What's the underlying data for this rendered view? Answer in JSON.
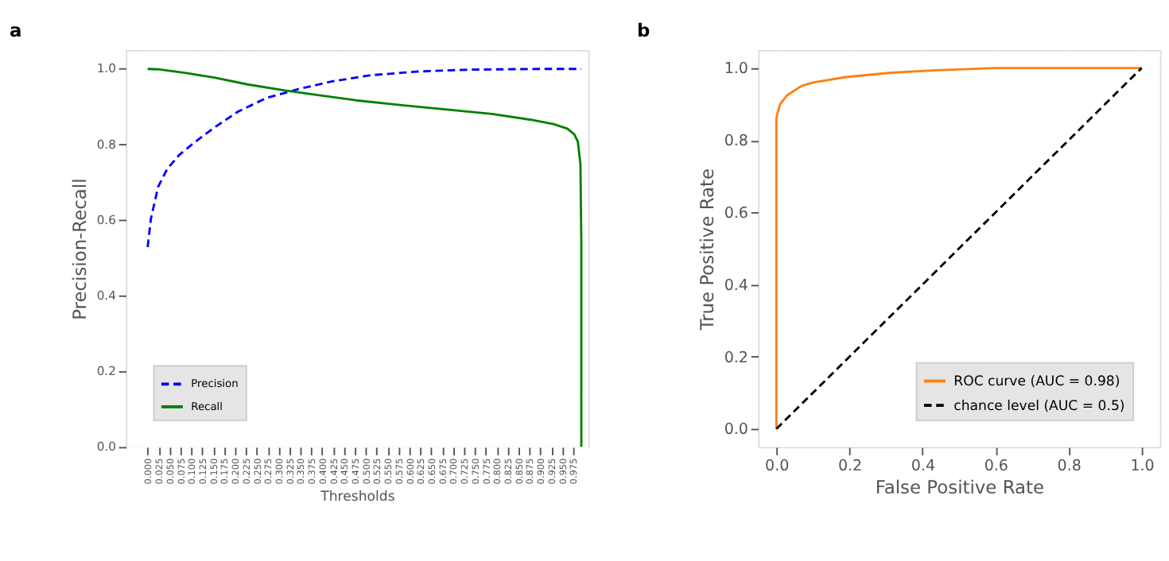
{
  "chart_data": [
    {
      "type": "line",
      "title": "a",
      "xlabel": "Thresholds",
      "ylabel": "Precision-Recall",
      "xlim": [
        -0.05,
        1.01
      ],
      "ylim": [
        0,
        1.05
      ],
      "xticks": [
        {
          "value": 0,
          "label": "0.000"
        },
        {
          "value": 0.025,
          "label": "0.025"
        },
        {
          "value": 0.05,
          "label": "0.050"
        },
        {
          "value": 0.075,
          "label": "0.075"
        },
        {
          "value": 0.1,
          "label": "0.100"
        },
        {
          "value": 0.125,
          "label": "0.125"
        },
        {
          "value": 0.15,
          "label": "0.150"
        },
        {
          "value": 0.175,
          "label": "0.175"
        },
        {
          "value": 0.2,
          "label": "0.200"
        },
        {
          "value": 0.225,
          "label": "0.225"
        },
        {
          "value": 0.25,
          "label": "0.250"
        },
        {
          "value": 0.275,
          "label": "0.275"
        },
        {
          "value": 0.3,
          "label": "0.300"
        },
        {
          "value": 0.325,
          "label": "0.325"
        },
        {
          "value": 0.35,
          "label": "0.350"
        },
        {
          "value": 0.375,
          "label": "0.375"
        },
        {
          "value": 0.4,
          "label": "0.400"
        },
        {
          "value": 0.425,
          "label": "0.425"
        },
        {
          "value": 0.45,
          "label": "0.450"
        },
        {
          "value": 0.475,
          "label": "0.475"
        },
        {
          "value": 0.5,
          "label": "0.500"
        },
        {
          "value": 0.525,
          "label": "0.525"
        },
        {
          "value": 0.55,
          "label": "0.550"
        },
        {
          "value": 0.575,
          "label": "0.575"
        },
        {
          "value": 0.6,
          "label": "0.600"
        },
        {
          "value": 0.625,
          "label": "0.625"
        },
        {
          "value": 0.65,
          "label": "0.650"
        },
        {
          "value": 0.675,
          "label": "0.675"
        },
        {
          "value": 0.7,
          "label": "0.700"
        },
        {
          "value": 0.725,
          "label": "0.725"
        },
        {
          "value": 0.75,
          "label": "0.750"
        },
        {
          "value": 0.775,
          "label": "0.775"
        },
        {
          "value": 0.8,
          "label": "0.800"
        },
        {
          "value": 0.825,
          "label": "0.825"
        },
        {
          "value": 0.85,
          "label": "0.850"
        },
        {
          "value": 0.875,
          "label": "0.875"
        },
        {
          "value": 0.9,
          "label": "0.900"
        },
        {
          "value": 0.925,
          "label": "0.925"
        },
        {
          "value": 0.95,
          "label": "0.950"
        },
        {
          "value": 0.975,
          "label": "0.975"
        }
      ],
      "yticks": [
        {
          "value": 0,
          "label": "0.0"
        },
        {
          "value": 0.2,
          "label": "0.2"
        },
        {
          "value": 0.4,
          "label": "0.4"
        },
        {
          "value": 0.6,
          "label": "0.6"
        },
        {
          "value": 0.8,
          "label": "0.8"
        },
        {
          "value": 1,
          "label": "1.0"
        }
      ],
      "grid": true,
      "legend": "bottom left",
      "series": [
        {
          "name": "Precision",
          "color": "#0000ff",
          "line_style": "dashed",
          "x": [
            0,
            0.0075,
            0.024,
            0.045,
            0.072,
            0.11,
            0.153,
            0.207,
            0.272,
            0.347,
            0.423,
            0.509,
            0.617,
            0.735,
            0.897,
            0.994
          ],
          "values": [
            0.529,
            0.604,
            0.688,
            0.736,
            0.772,
            0.808,
            0.845,
            0.887,
            0.923,
            0.947,
            0.967,
            0.983,
            0.993,
            0.998,
            1.0,
            1.0
          ]
        },
        {
          "name": "Recall",
          "color": "#008000",
          "line_style": "solid",
          "x": [
            0,
            0.024,
            0.088,
            0.153,
            0.229,
            0.315,
            0.39,
            0.477,
            0.574,
            0.682,
            0.789,
            0.876,
            0.93,
            0.962,
            0.978,
            0.986,
            0.992,
            0.994,
            0.994
          ],
          "values": [
            1.0,
            0.999,
            0.989,
            0.977,
            0.959,
            0.943,
            0.931,
            0.917,
            0.905,
            0.893,
            0.881,
            0.866,
            0.854,
            0.842,
            0.827,
            0.808,
            0.748,
            0.543,
            0
          ]
        }
      ]
    },
    {
      "type": "line",
      "title": "b",
      "xlabel": "False Positive Rate",
      "ylabel": "True Positive Rate",
      "xlim": [
        -0.05,
        1.05
      ],
      "ylim": [
        -0.05,
        1.05
      ],
      "xticks": [
        {
          "value": 0,
          "label": "0.0"
        },
        {
          "value": 0.2,
          "label": "0.2"
        },
        {
          "value": 0.4,
          "label": "0.4"
        },
        {
          "value": 0.6,
          "label": "0.6"
        },
        {
          "value": 0.8,
          "label": "0.8"
        },
        {
          "value": 1,
          "label": "1.0"
        }
      ],
      "yticks": [
        {
          "value": 0,
          "label": "0.0"
        },
        {
          "value": 0.2,
          "label": "0.2"
        },
        {
          "value": 0.4,
          "label": "0.4"
        },
        {
          "value": 0.6,
          "label": "0.6"
        },
        {
          "value": 0.8,
          "label": "0.8"
        },
        {
          "value": 1,
          "label": "1.0"
        }
      ],
      "grid": true,
      "legend": "bottom right",
      "series": [
        {
          "name": "ROC curve (AUC = 0.98)",
          "color": "#ff7f0e",
          "line_style": "solid",
          "x": [
            0,
            0,
            0.002,
            0.01,
            0.03,
            0.068,
            0.1,
            0.19,
            0.315,
            0.44,
            0.6,
            1.0
          ],
          "values": [
            0,
            0.86,
            0.87,
            0.9,
            0.925,
            0.95,
            0.96,
            0.975,
            0.987,
            0.994,
            1.0,
            1.0
          ]
        },
        {
          "name": "chance level (AUC = 0.5)",
          "color": "#000000",
          "line_style": "dashed",
          "x": [
            0,
            1
          ],
          "values": [
            0,
            1
          ]
        }
      ]
    }
  ]
}
